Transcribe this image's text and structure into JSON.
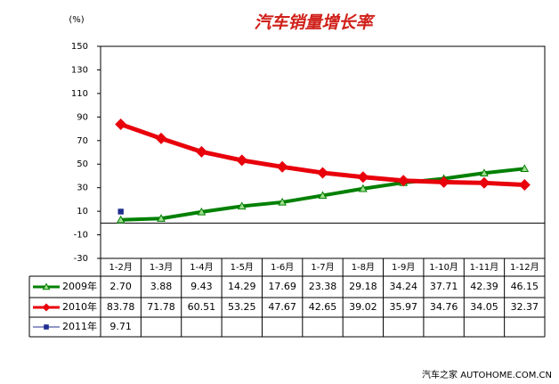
{
  "chart_data": {
    "type": "line",
    "title": "汽车销量增长率",
    "ylabel": "(%)",
    "categories": [
      "1-2月",
      "1-3月",
      "1-4月",
      "1-5月",
      "1-6月",
      "1-7月",
      "1-8月",
      "1-9月",
      "1-10月",
      "1-11月",
      "1-12月"
    ],
    "series": [
      {
        "name": "2009年",
        "color": "#008000",
        "marker": "triangle",
        "values": [
          2.7,
          3.88,
          9.43,
          14.29,
          17.69,
          23.38,
          29.18,
          34.24,
          37.71,
          42.39,
          46.15
        ],
        "value_labels": [
          "2.70",
          "3.88",
          "9.43",
          "14.29",
          "17.69",
          "23.38",
          "29.18",
          "34.24",
          "37.71",
          "42.39",
          "46.15"
        ]
      },
      {
        "name": "2010年",
        "color": "#e8000b",
        "marker": "diamond",
        "values": [
          83.78,
          71.78,
          60.51,
          53.25,
          47.67,
          42.65,
          39.02,
          35.97,
          34.76,
          34.05,
          32.37
        ],
        "value_labels": [
          "83.78",
          "71.78",
          "60.51",
          "53.25",
          "47.67",
          "42.65",
          "39.02",
          "35.97",
          "34.76",
          "34.05",
          "32.37"
        ]
      },
      {
        "name": "2011年",
        "color": "#1f2f8f",
        "marker": "square",
        "values": [
          9.71,
          null,
          null,
          null,
          null,
          null,
          null,
          null,
          null,
          null,
          null
        ],
        "value_labels": [
          "9.71",
          null,
          null,
          null,
          null,
          null,
          null,
          null,
          null,
          null,
          null
        ]
      }
    ],
    "ylim": [
      -30,
      150
    ],
    "yticks": [
      -30,
      -10,
      10,
      30,
      50,
      70,
      90,
      110,
      130,
      150
    ],
    "footer": "汽车之家 AUTOHOME.COM.CN"
  }
}
